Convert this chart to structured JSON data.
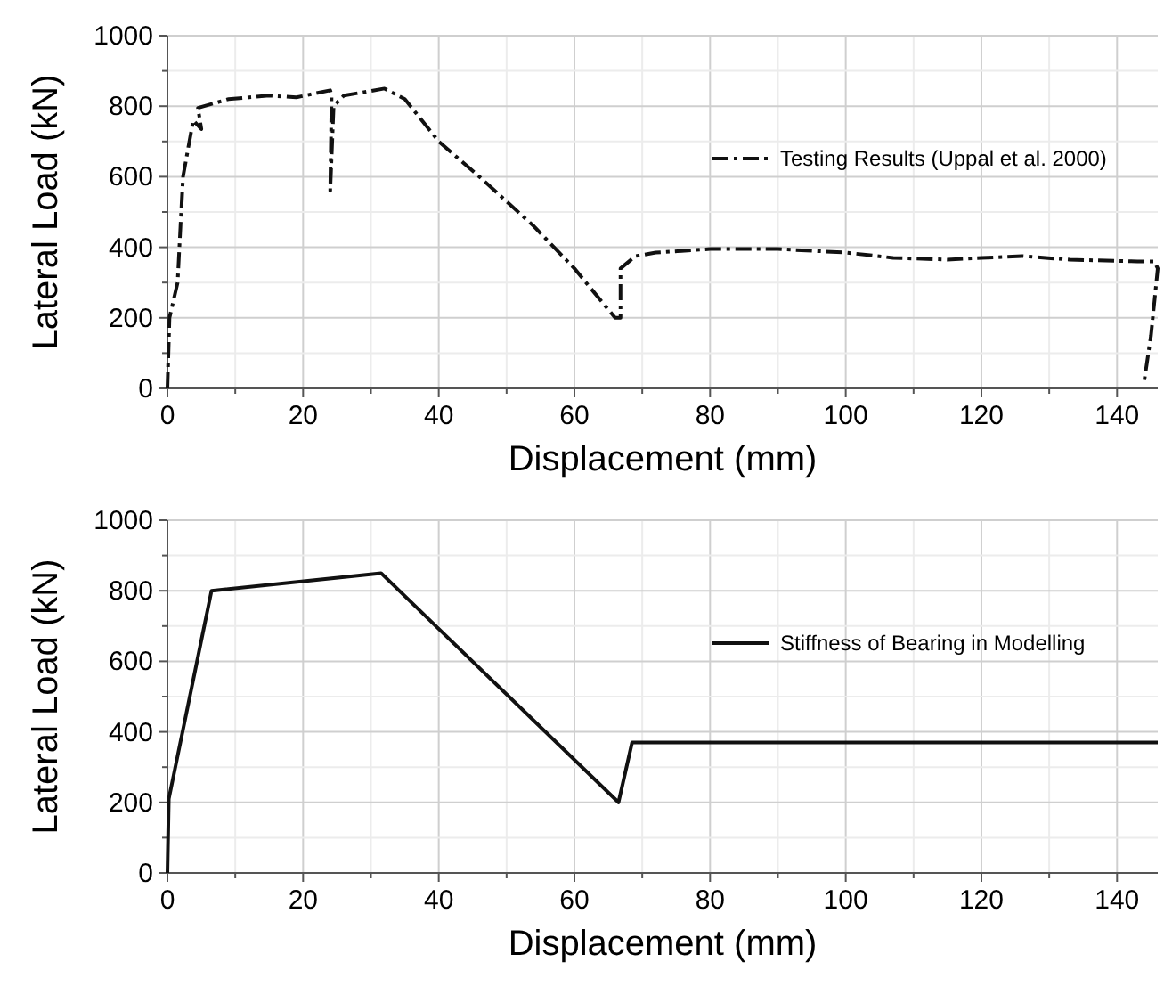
{
  "chart_data": [
    {
      "type": "line",
      "xlabel": "Displacement (mm)",
      "ylabel": "Lateral Load (kN)",
      "xlim": [
        0,
        146
      ],
      "ylim": [
        0,
        1000
      ],
      "xticks": [
        0,
        {
          "value": 10,
          "label": null
        },
        20,
        {
          "value": 30,
          "label": null
        },
        40,
        {
          "value": 50,
          "label": null
        },
        60,
        {
          "value": 70,
          "label": null
        },
        80,
        {
          "value": 90,
          "label": null
        },
        100,
        {
          "value": 110,
          "label": null
        },
        120,
        {
          "value": 130,
          "label": null
        },
        140
      ],
      "yticks": [
        0,
        {
          "value": 100,
          "label": null
        },
        200,
        {
          "value": 300,
          "label": null
        },
        400,
        {
          "value": 500,
          "label": null
        },
        600,
        {
          "value": 700,
          "label": null
        },
        800,
        {
          "value": 900,
          "label": null
        },
        1000
      ],
      "grid": true,
      "legend": "right",
      "line_style": "dashed",
      "marker": "none",
      "series": [
        {
          "name": "Testing Results (Uppal et al. 2000)",
          "color": "#111111",
          "x": [
            0,
            0.3,
            1.5,
            2.3,
            3.8,
            5,
            4.5,
            9,
            15,
            19,
            24,
            24.2,
            24,
            24.5,
            26,
            32,
            35,
            40,
            46,
            54,
            60,
            66,
            66.8,
            66.8,
            69,
            72,
            80,
            90,
            100,
            107,
            115,
            120,
            126,
            133,
            143,
            145.5,
            146,
            145,
            144
          ],
          "values": [
            0,
            200,
            300,
            600,
            760,
            735,
            795,
            820,
            830,
            825,
            845,
            830,
            560,
            800,
            830,
            850,
            820,
            700,
            600,
            460,
            340,
            200,
            200,
            340,
            375,
            385,
            395,
            395,
            385,
            370,
            365,
            370,
            375,
            365,
            360,
            360,
            340,
            150,
            20
          ]
        }
      ]
    },
    {
      "type": "line",
      "xlabel": "Displacement (mm)",
      "ylabel": "Lateral Load (kN)",
      "xlim": [
        0,
        146
      ],
      "ylim": [
        0,
        1000
      ],
      "xticks": [
        0,
        {
          "value": 10,
          "label": null
        },
        20,
        {
          "value": 30,
          "label": null
        },
        40,
        {
          "value": 50,
          "label": null
        },
        60,
        {
          "value": 70,
          "label": null
        },
        80,
        {
          "value": 90,
          "label": null
        },
        100,
        {
          "value": 110,
          "label": null
        },
        120,
        {
          "value": 130,
          "label": null
        },
        140
      ],
      "yticks": [
        0,
        {
          "value": 100,
          "label": null
        },
        200,
        {
          "value": 300,
          "label": null
        },
        400,
        {
          "value": 500,
          "label": null
        },
        600,
        {
          "value": 700,
          "label": null
        },
        800,
        {
          "value": 900,
          "label": null
        },
        1000
      ],
      "grid": true,
      "legend": "right",
      "line_style": "solid",
      "marker": "none",
      "series": [
        {
          "name": "Stiffness of Bearing in Modelling",
          "color": "#111111",
          "x": [
            0,
            0.2,
            6.5,
            31.5,
            66.5,
            68.5,
            146
          ],
          "values": [
            0,
            210,
            800,
            850,
            200,
            370,
            370
          ]
        }
      ]
    }
  ]
}
